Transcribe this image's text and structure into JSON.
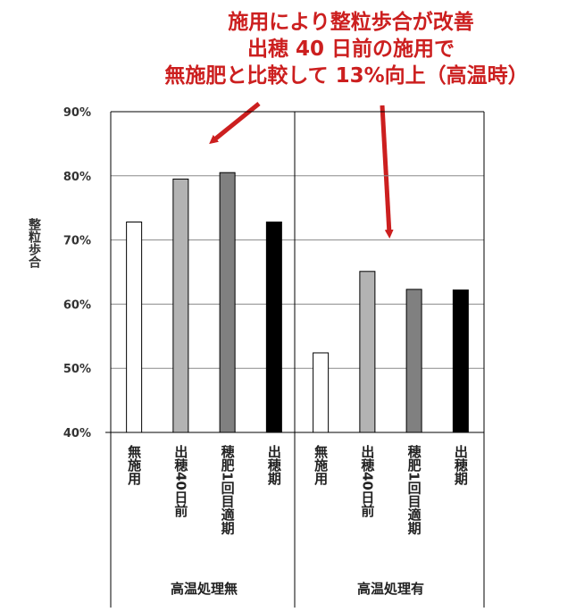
{
  "annotation": {
    "lines": [
      "施用により整粒歩合が改善",
      "出穂 40 日前の施用で",
      "無施肥と比較して 13%向上（高温時）"
    ],
    "color": "#cc1f1f"
  },
  "chart_data": {
    "type": "bar",
    "ylabel": "整粒歩合",
    "ylim": [
      40,
      90
    ],
    "yticks": [
      "40%",
      "50%",
      "60%",
      "70%",
      "80%",
      "90%"
    ],
    "grid": true,
    "groups": [
      {
        "name": "高温処理無",
        "bars": [
          {
            "label": "無施用",
            "value": 72.8
          },
          {
            "label": "出穂40日前",
            "value": 79.5
          },
          {
            "label": "穂肥1回目適期",
            "value": 80.5
          },
          {
            "label": "出穂期",
            "value": 72.8
          }
        ]
      },
      {
        "name": "高温処理有",
        "bars": [
          {
            "label": "無施用",
            "value": 52.4
          },
          {
            "label": "出穂40日前",
            "value": 65.1
          },
          {
            "label": "穂肥1回目適期",
            "value": 62.3
          },
          {
            "label": "出穂期",
            "value": 62.2
          }
        ]
      }
    ],
    "bar_colors": [
      "#ffffff",
      "#b3b3b3",
      "#808080",
      "#000000"
    ]
  }
}
